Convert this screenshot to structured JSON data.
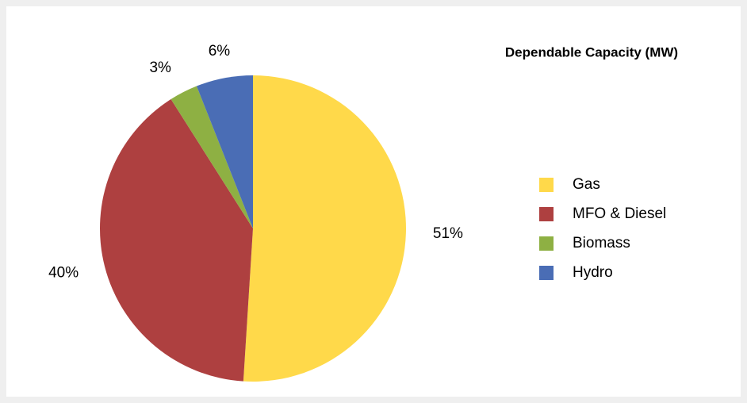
{
  "chart_data": {
    "type": "pie",
    "title": "Dependable Capacity (MW)",
    "categories": [
      "Gas",
      "MFO & Diesel",
      "Biomass",
      "Hydro"
    ],
    "values": [
      51,
      40,
      3,
      6
    ],
    "value_labels": [
      "51%",
      "40%",
      "3%",
      "6%"
    ],
    "colors": [
      "#ffd94a",
      "#ae4040",
      "#8eb043",
      "#4a6db5"
    ]
  }
}
